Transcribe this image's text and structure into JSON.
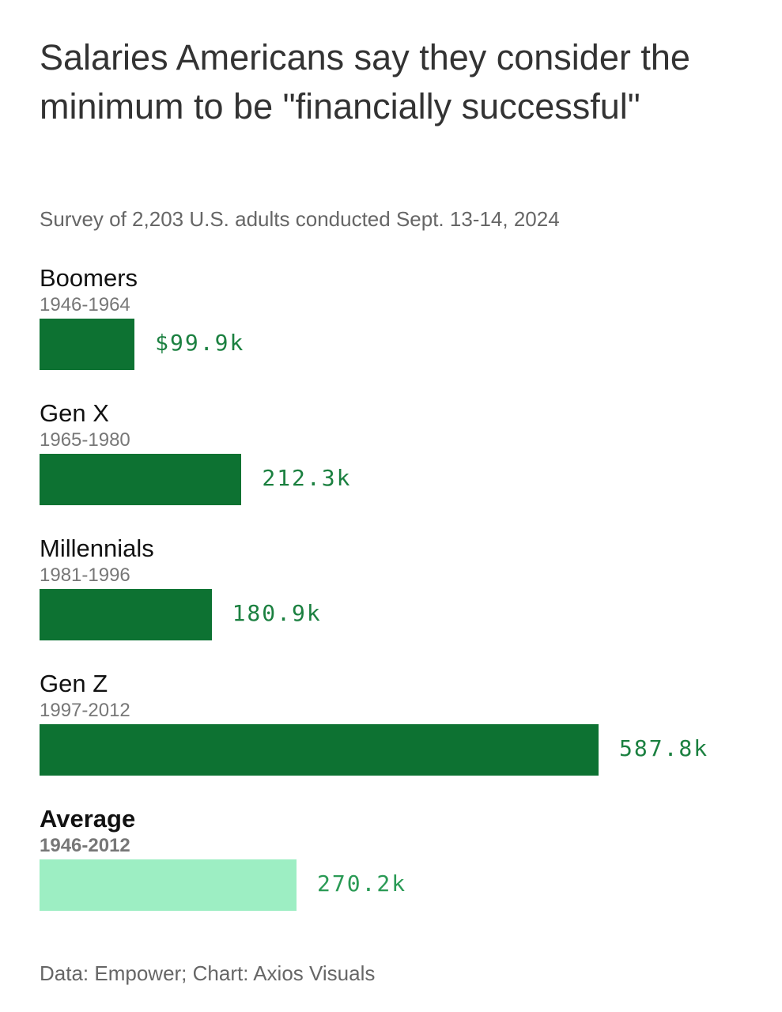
{
  "chart_data": {
    "type": "bar",
    "orientation": "horizontal",
    "title": "Salaries Americans say they consider the minimum to be \"financially successful\"",
    "subtitle": "Survey of 2,203 U.S. adults conducted Sept. 13-14, 2024",
    "source": "Data: Empower; Chart: Axios Visuals",
    "unit": "thousand USD",
    "categories": [
      "Boomers",
      "Gen X",
      "Millennials",
      "Gen Z",
      "Average"
    ],
    "ranges": [
      "1946-1964",
      "1965-1980",
      "1981-1996",
      "1997-2012",
      "1946-2012"
    ],
    "values": [
      99.9,
      212.3,
      180.9,
      587.8,
      270.2
    ],
    "data_labels": [
      "$99.9k",
      "212.3k",
      "180.9k",
      "587.8k",
      "270.2k"
    ],
    "highlight": [
      false,
      false,
      false,
      false,
      true
    ],
    "colors": {
      "bar": "#0d7232",
      "highlight_bar": "#9deec3",
      "label": "#1b8040",
      "highlight_label": "#2a9a55"
    },
    "grid": false
  }
}
